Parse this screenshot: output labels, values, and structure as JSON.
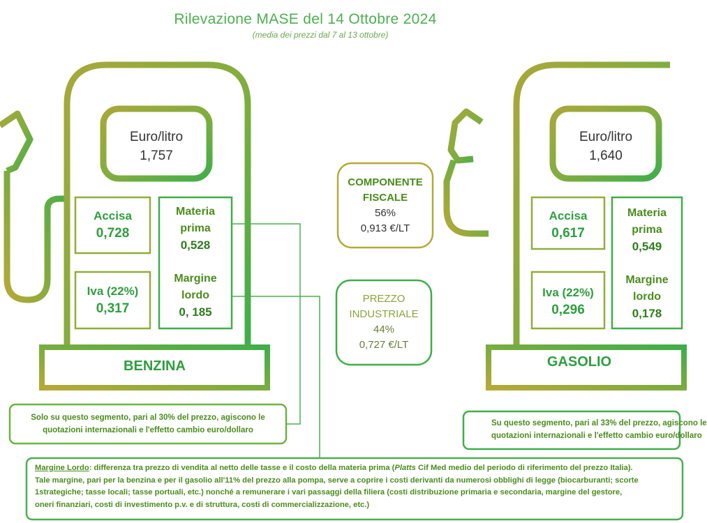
{
  "header": {
    "title": "Rilevazione MASE del 14 Ottobre 2024",
    "subtitle": "(media dei prezzi dal 7 al 13 ottobre)"
  },
  "benzina": {
    "unit_label": "Euro/litro",
    "price": "1,757",
    "accisa_label": "Accisa",
    "accisa_value": "0,728",
    "materia_label_1": "Materia",
    "materia_label_2": "prima",
    "materia_value": "0,528",
    "iva_label": "Iva (22%)",
    "iva_value": "0,317",
    "margine_label_1": "Margine",
    "margine_label_2": "lordo",
    "margine_value": "0, 185",
    "name": "BENZINA",
    "note_line_1": "Solo su questo segmento, pari al 30% del prezzo, agiscono le",
    "note_line_2": "quotazioni internazionali e l'effetto cambio euro/dollaro"
  },
  "gasolio": {
    "unit_label": "Euro/litro",
    "price": "1,640",
    "accisa_label": "Accisa",
    "accisa_value": "0,617",
    "materia_label_1": "Materia",
    "materia_label_2": "prima",
    "materia_value": "0,549",
    "iva_label": "Iva (22%)",
    "iva_value": "0,296",
    "margine_label_1": "Margine",
    "margine_label_2": "lordo",
    "margine_value": "0,178",
    "name": "GASOLIO",
    "note_line_1": "Su questo segmento, pari al 33% del prezzo, agiscono le",
    "note_line_2": "quotazioni internazionali e l'effetto cambio euro/dollaro"
  },
  "fiscal_component": {
    "title_1": "COMPONENTE",
    "title_2": "FISCALE",
    "percent": "56%",
    "amount": "0,913 €/LT"
  },
  "industrial_price": {
    "title_1": "PREZZO",
    "title_2": "INDUSTRIALE",
    "percent": "44%",
    "amount": "0,727 €/LT"
  },
  "margin_note": {
    "term": "Margine Lordo",
    "line_1_a": ": differenza tra prezzo di vendita al netto delle tasse e il costo della materia prima (",
    "line_1_italic": "Platts",
    "line_1_b": " Cif Med medio del periodo di riferimento del prezzo Italia).",
    "line_2": "Tale margine, pari per la benzina e per il gasolio all'11% del prezzo alla pompa, serve a coprire i costi derivanti da numerosi obblighi di legge (biocarburanti; scorte",
    "line_3": "1strategiche; tasse locali; tasse portuali, etc.) nonché a remunerare i vari passaggi della filiera (costi distribuzione primaria e secondaria, margine del gestore,",
    "line_4": "oneri finanziari, costi di investimento p.v. e di struttura, costi di commercializzazione, etc.)"
  },
  "colors": {
    "green": "#3fae49",
    "olive": "#a8a83a",
    "dark_green": "#2e9e3e"
  }
}
